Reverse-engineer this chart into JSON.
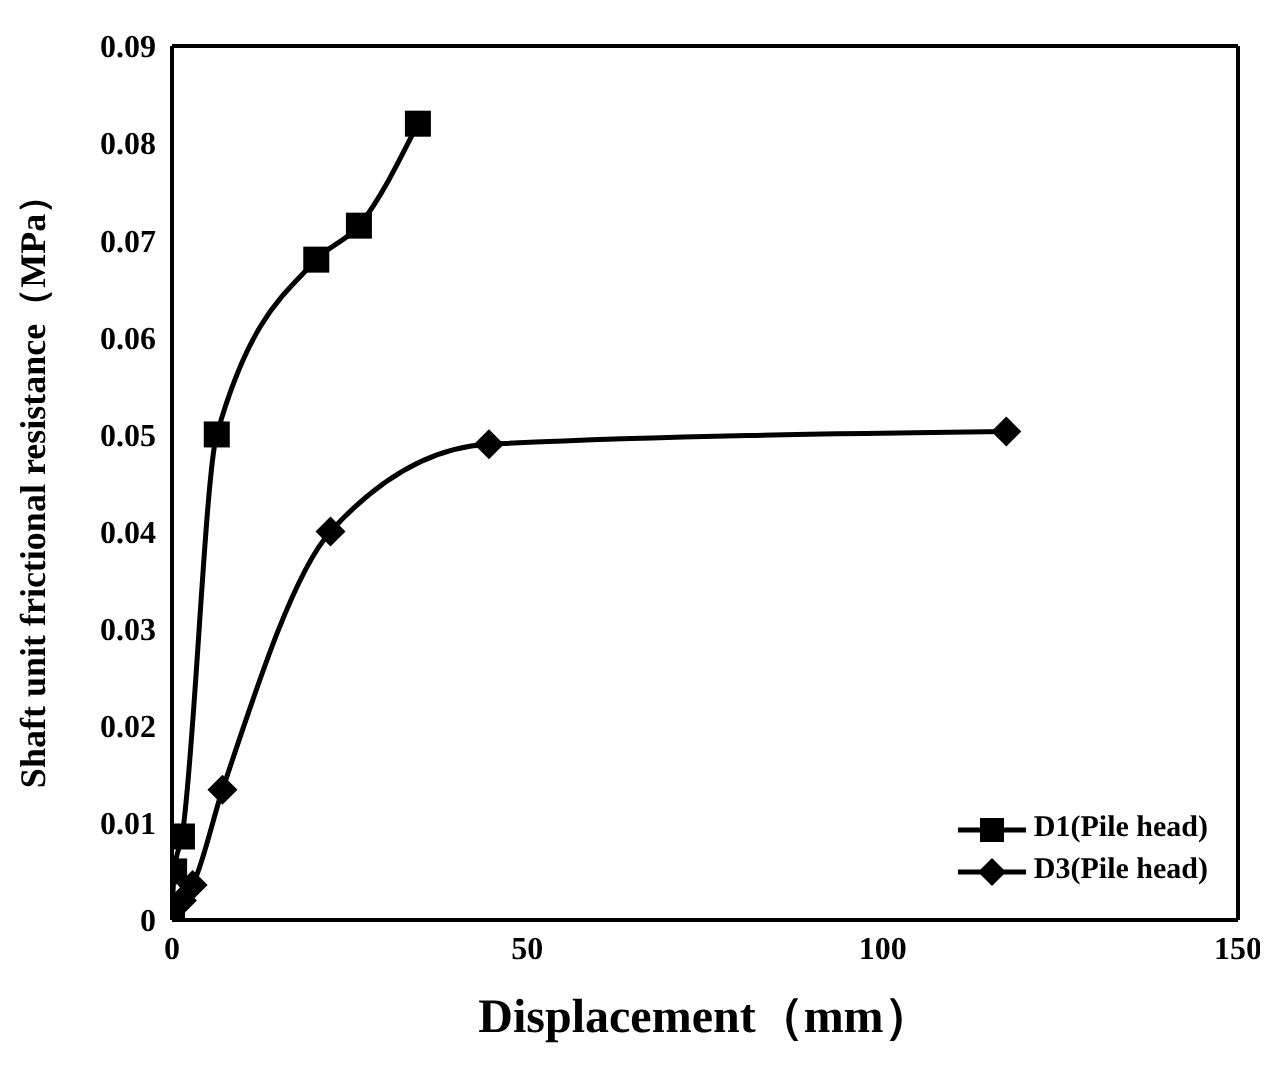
{
  "chart_data": {
    "type": "line",
    "xlabel": "Displacement（mm）",
    "ylabel": "Shaft unit frictional resistance（MPa）",
    "xlim": [
      0,
      150
    ],
    "xticks": [
      0,
      50,
      100,
      150
    ],
    "ylim": [
      0,
      0.09
    ],
    "yticks": [
      0,
      0.01,
      0.02,
      0.03,
      0.04,
      0.05,
      0.06,
      0.07,
      0.08,
      0.09
    ],
    "legend": "bottom right",
    "line_style": "solid",
    "series": [
      {
        "name": "D1(Pile head)",
        "color": "#000000",
        "marker": "square",
        "x": [
          0,
          0.3,
          1.4,
          6.3,
          20.3,
          26.3,
          34.6
        ],
        "values": [
          0,
          0.005,
          0.0086,
          0.05,
          0.068,
          0.0715,
          0.082
        ]
      },
      {
        "name": "D3(Pile head)",
        "color": "#000000",
        "marker": "diamond",
        "x": [
          0,
          1.4,
          2.9,
          7.1,
          22.3,
          44.6,
          117.4
        ],
        "values": [
          0,
          0.002,
          0.0036,
          0.0134,
          0.04,
          0.049,
          0.0503
        ]
      }
    ]
  }
}
